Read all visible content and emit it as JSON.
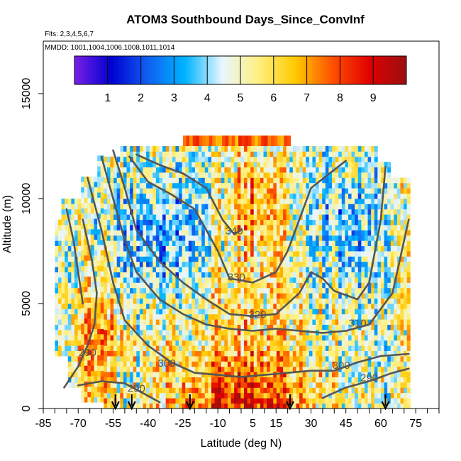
{
  "chart_data": {
    "type": "heatmap",
    "title": "ATOM3 Southbound Days_Since_ConvInf",
    "subtitle_lines": [
      "Flts: 2,3,4,5,6,7",
      "MMDD: 1001,1004,1006,1008,1011,1014"
    ],
    "xlabel": "Latitude (deg N)",
    "ylabel": "Altitude (m)",
    "xlim": [
      -85,
      85
    ],
    "ylim": [
      0,
      17500
    ],
    "x_ticks": [
      -85,
      -70,
      -55,
      -40,
      -25,
      -10,
      5,
      15,
      30,
      45,
      60,
      75
    ],
    "x_minor_step": 5,
    "y_ticks": [
      0,
      5000,
      10000,
      15000
    ],
    "colorbar": {
      "range": [
        0,
        10
      ],
      "ticks": [
        1,
        2,
        3,
        4,
        5,
        6,
        7,
        8,
        9
      ],
      "colors": [
        "#7a1fe8",
        "#0000d0",
        "#1060f0",
        "#00b4ff",
        "#e8f6ff",
        "#fff080",
        "#ffc800",
        "#ff5000",
        "#e00000",
        "#9a1010"
      ]
    },
    "contour_labels": [
      {
        "text": "340",
        "lat": -3,
        "alt": 8300
      },
      {
        "text": "330",
        "lat": -2,
        "alt": 6100
      },
      {
        "text": "320",
        "lat": 7,
        "alt": 4300
      },
      {
        "text": "310",
        "lat": 50,
        "alt": 3900
      },
      {
        "text": "300",
        "lat": 43,
        "alt": 1900
      },
      {
        "text": "290",
        "lat": 55,
        "alt": 1300
      },
      {
        "text": "290",
        "lat": -45,
        "alt": 800
      },
      {
        "text": "300",
        "lat": -32,
        "alt": 2000
      },
      {
        "text": "290",
        "lat": -66,
        "alt": 2500
      }
    ],
    "contours": [
      {
        "level": "290",
        "points": [
          [
            -68,
            9000
          ],
          [
            -64,
            7000
          ],
          [
            -62,
            5500
          ],
          [
            -63,
            4000
          ],
          [
            -66,
            3000
          ],
          [
            -70,
            2000
          ],
          [
            -76,
            1000
          ]
        ]
      },
      {
        "level": "290",
        "points": [
          [
            -70,
            1100
          ],
          [
            -60,
            1300
          ],
          [
            -50,
            1200
          ],
          [
            -40,
            600
          ],
          [
            -35,
            300
          ]
        ]
      },
      {
        "level": "290",
        "points": [
          [
            35,
            500
          ],
          [
            45,
            1000
          ],
          [
            55,
            1300
          ],
          [
            65,
            1700
          ],
          [
            72,
            1900
          ]
        ]
      },
      {
        "level": "300",
        "points": [
          [
            -66,
            11000
          ],
          [
            -60,
            8500
          ],
          [
            -55,
            6000
          ],
          [
            -50,
            4200
          ],
          [
            -40,
            3000
          ],
          [
            -30,
            2200
          ],
          [
            -20,
            1700
          ],
          [
            -10,
            1600
          ]
        ]
      },
      {
        "level": "300",
        "points": [
          [
            -10,
            1600
          ],
          [
            0,
            1500
          ],
          [
            10,
            1600
          ],
          [
            20,
            1700
          ],
          [
            30,
            1800
          ],
          [
            40,
            1800
          ],
          [
            50,
            2200
          ],
          [
            60,
            2500
          ],
          [
            72,
            2600
          ]
        ]
      },
      {
        "level": "310",
        "points": [
          [
            -60,
            12000
          ],
          [
            -55,
            10000
          ],
          [
            -50,
            8000
          ],
          [
            -45,
            6500
          ],
          [
            -35,
            5200
          ],
          [
            -25,
            4500
          ],
          [
            -15,
            4000
          ],
          [
            -5,
            3800
          ],
          [
            5,
            3700
          ]
        ]
      },
      {
        "level": "310",
        "points": [
          [
            5,
            3700
          ],
          [
            15,
            3800
          ],
          [
            25,
            3700
          ],
          [
            35,
            3600
          ],
          [
            45,
            3700
          ],
          [
            55,
            4000
          ],
          [
            65,
            5500
          ],
          [
            72,
            9000
          ]
        ]
      },
      {
        "level": "320",
        "points": [
          [
            -55,
            12300
          ],
          [
            -50,
            10500
          ],
          [
            -45,
            8500
          ],
          [
            -35,
            7000
          ],
          [
            -25,
            6000
          ],
          [
            -15,
            5200
          ],
          [
            -5,
            4500
          ],
          [
            5,
            4400
          ],
          [
            15,
            4500
          ],
          [
            25,
            5500
          ],
          [
            30,
            6500
          ],
          [
            35,
            6200
          ],
          [
            40,
            5600
          ],
          [
            50,
            5200
          ],
          [
            55,
            6000
          ],
          [
            60,
            9000
          ],
          [
            62,
            11500
          ]
        ]
      },
      {
        "level": "330",
        "points": [
          [
            -48,
            12000
          ],
          [
            -40,
            10800
          ],
          [
            -30,
            10200
          ],
          [
            -20,
            9500
          ],
          [
            -10,
            7500
          ],
          [
            -5,
            6200
          ],
          [
            5,
            6000
          ],
          [
            15,
            6500
          ],
          [
            20,
            7500
          ],
          [
            25,
            9000
          ],
          [
            30,
            10500
          ],
          [
            38,
            11200
          ],
          [
            45,
            11800
          ]
        ]
      },
      {
        "level": "340",
        "points": [
          [
            -45,
            12100
          ],
          [
            -35,
            11600
          ],
          [
            -25,
            11200
          ],
          [
            -15,
            10500
          ],
          [
            -8,
            9000
          ],
          [
            -3,
            8300
          ],
          [
            0,
            8500
          ]
        ]
      },
      {
        "level": "330",
        "points": [
          [
            -75,
            9500
          ],
          [
            -72,
            8000
          ],
          [
            -70,
            6500
          ],
          [
            -68,
            5000
          ]
        ]
      }
    ],
    "profile_markers_lat": [
      -54,
      -47,
      -22,
      21,
      62
    ]
  }
}
